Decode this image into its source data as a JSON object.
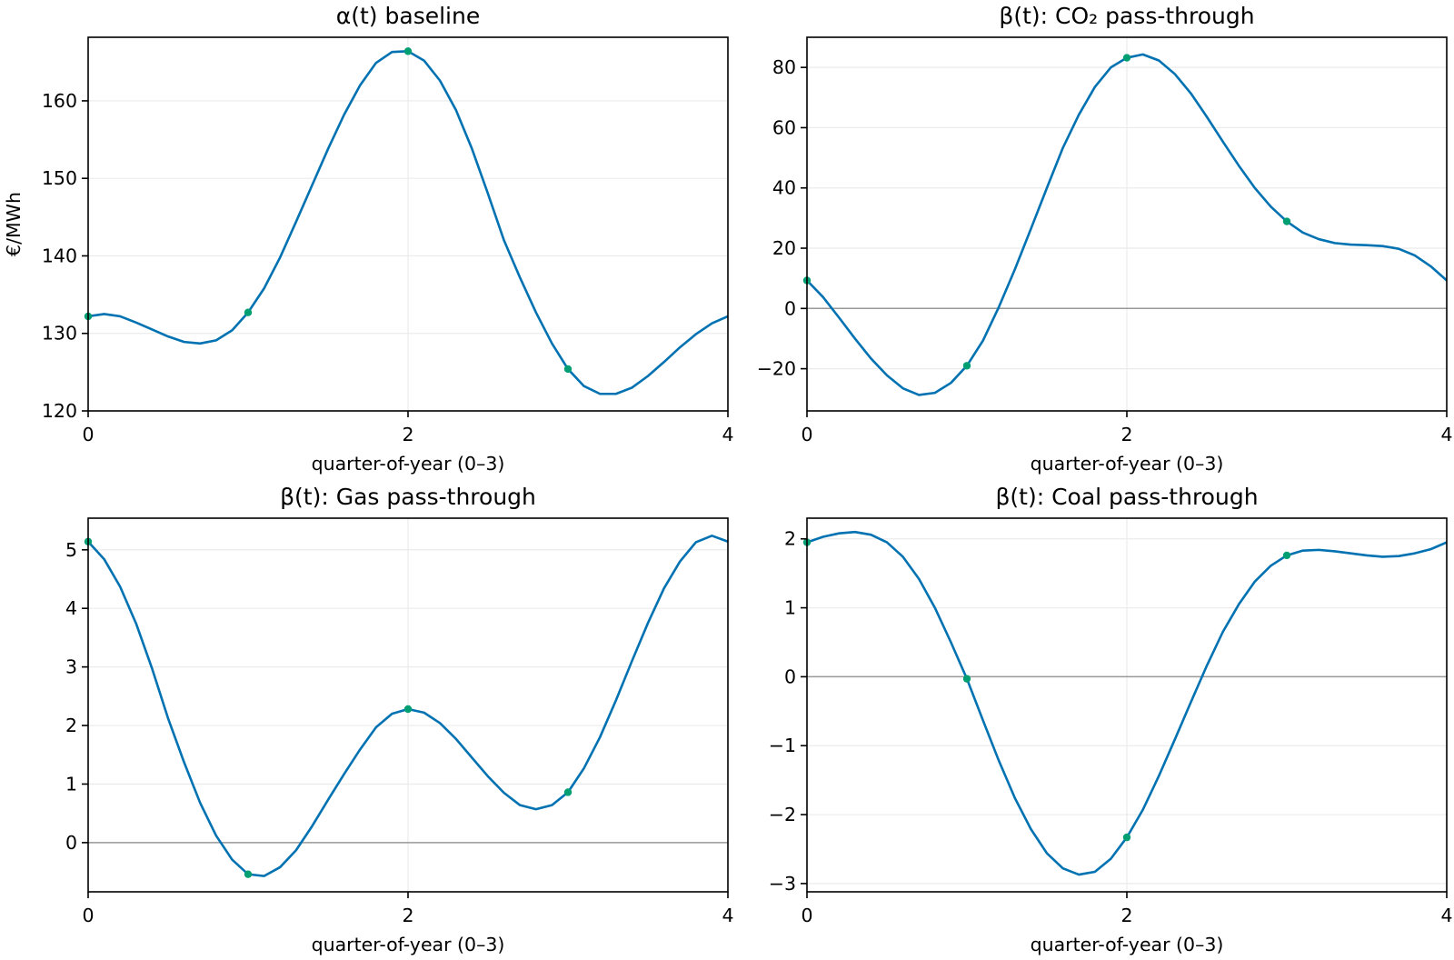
{
  "chart_data": [
    {
      "type": "line",
      "title": "α(t) baseline",
      "xlabel": "quarter-of-year (0–3)",
      "ylabel": "€/MWh",
      "xlim": [
        0,
        4
      ],
      "ylim": [
        120,
        168.2
      ],
      "xticks": [
        0,
        2,
        4
      ],
      "yticks": [
        120,
        130,
        140,
        150,
        160
      ],
      "ytick_labels": [
        "120",
        "130",
        "140",
        "150",
        "160"
      ],
      "grid": true,
      "zero_line": false,
      "series": [
        {
          "x": [
            0,
            0.1,
            0.2,
            0.3,
            0.4,
            0.5,
            0.6,
            0.7,
            0.8,
            0.9,
            1.0,
            1.1,
            1.2,
            1.3,
            1.4,
            1.5,
            1.6,
            1.7,
            1.8,
            1.9,
            2.0,
            2.1,
            2.2,
            2.3,
            2.4,
            2.5,
            2.6,
            2.7,
            2.8,
            2.9,
            3.0,
            3.1,
            3.2,
            3.3,
            3.4,
            3.5,
            3.6,
            3.7,
            3.8,
            3.9,
            4.0
          ],
          "y": [
            132.2,
            132.5,
            132.2,
            131.4,
            130.5,
            129.6,
            128.9,
            128.7,
            129.1,
            130.4,
            132.7,
            135.8,
            139.8,
            144.4,
            149.1,
            153.8,
            158.2,
            162.0,
            164.9,
            166.3,
            166.4,
            165.2,
            162.6,
            158.8,
            153.8,
            148.0,
            142.0,
            137.2,
            132.7,
            128.7,
            125.4,
            123.2,
            122.2,
            122.2,
            123.0,
            124.5,
            126.3,
            128.2,
            129.9,
            131.3,
            132.2
          ]
        }
      ],
      "markers": {
        "x": [
          0,
          1,
          2,
          3
        ],
        "y": [
          132.2,
          132.7,
          166.4,
          125.4
        ]
      }
    },
    {
      "type": "line",
      "title": "β(t): CO₂ pass-through",
      "xlabel": "quarter-of-year (0–3)",
      "xlim": [
        0,
        4
      ],
      "ylim": [
        -34,
        90
      ],
      "xticks": [
        0,
        2,
        4
      ],
      "yticks": [
        -20,
        0,
        20,
        40,
        60,
        80
      ],
      "ytick_labels": [
        "−20",
        "0",
        "20",
        "40",
        "60",
        "80"
      ],
      "grid": true,
      "zero_line": true,
      "series": [
        {
          "x": [
            0,
            0.1,
            0.2,
            0.3,
            0.4,
            0.5,
            0.6,
            0.7,
            0.8,
            0.9,
            1.0,
            1.1,
            1.2,
            1.3,
            1.4,
            1.5,
            1.6,
            1.7,
            1.8,
            1.9,
            2.0,
            2.1,
            2.2,
            2.3,
            2.4,
            2.5,
            2.6,
            2.7,
            2.8,
            2.9,
            3.0,
            3.1,
            3.2,
            3.3,
            3.4,
            3.5,
            3.6,
            3.7,
            3.8,
            3.9,
            4.0
          ],
          "y": [
            9.3,
            3.8,
            -3.0,
            -10.0,
            -16.6,
            -22.2,
            -26.5,
            -28.7,
            -28.0,
            -24.7,
            -19.0,
            -10.7,
            0.5,
            13.0,
            26.4,
            40.0,
            53.3,
            64.3,
            73.5,
            80.0,
            83.2,
            84.3,
            82.3,
            77.8,
            71.4,
            63.6,
            55.4,
            47.4,
            40.0,
            33.8,
            28.9,
            25.2,
            23.0,
            21.7,
            21.2,
            21.0,
            20.7,
            19.8,
            17.6,
            14.0,
            9.3
          ]
        }
      ],
      "markers": {
        "x": [
          0,
          1,
          2,
          3
        ],
        "y": [
          9.3,
          -19.0,
          83.2,
          28.9
        ]
      }
    },
    {
      "type": "line",
      "title": "β(t): Gas pass-through",
      "xlabel": "quarter-of-year (0–3)",
      "xlim": [
        0,
        4
      ],
      "ylim": [
        -0.84,
        5.54
      ],
      "xticks": [
        0,
        2,
        4
      ],
      "yticks": [
        0,
        1,
        2,
        3,
        4,
        5
      ],
      "ytick_labels": [
        "0",
        "1",
        "2",
        "3",
        "4",
        "5"
      ],
      "grid": true,
      "zero_line": true,
      "series": [
        {
          "x": [
            0,
            0.1,
            0.2,
            0.3,
            0.4,
            0.5,
            0.6,
            0.7,
            0.8,
            0.9,
            1.0,
            1.1,
            1.2,
            1.3,
            1.4,
            1.5,
            1.6,
            1.7,
            1.8,
            1.9,
            2.0,
            2.1,
            2.2,
            2.3,
            2.4,
            2.5,
            2.6,
            2.7,
            2.8,
            2.9,
            3.0,
            3.1,
            3.2,
            3.3,
            3.4,
            3.5,
            3.6,
            3.7,
            3.8,
            3.9,
            4.0
          ],
          "y": [
            5.14,
            4.84,
            4.37,
            3.74,
            2.97,
            2.12,
            1.37,
            0.68,
            0.12,
            -0.29,
            -0.54,
            -0.57,
            -0.42,
            -0.13,
            0.28,
            0.73,
            1.17,
            1.59,
            1.97,
            2.2,
            2.28,
            2.22,
            2.04,
            1.77,
            1.45,
            1.13,
            0.85,
            0.64,
            0.57,
            0.64,
            0.86,
            1.27,
            1.8,
            2.43,
            3.1,
            3.75,
            4.34,
            4.8,
            5.13,
            5.24,
            5.14
          ]
        }
      ],
      "markers": {
        "x": [
          0,
          1,
          2,
          3
        ],
        "y": [
          5.14,
          -0.54,
          2.28,
          0.86
        ]
      }
    },
    {
      "type": "line",
      "title": "β(t): Coal pass-through",
      "xlabel": "quarter-of-year (0–3)",
      "xlim": [
        0,
        4
      ],
      "ylim": [
        -3.12,
        2.3
      ],
      "xticks": [
        0,
        2,
        4
      ],
      "yticks": [
        -3,
        -2,
        -1,
        0,
        1,
        2
      ],
      "ytick_labels": [
        "−3",
        "−2",
        "−1",
        "0",
        "1",
        "2"
      ],
      "grid": true,
      "zero_line": true,
      "series": [
        {
          "x": [
            0,
            0.1,
            0.2,
            0.3,
            0.4,
            0.5,
            0.6,
            0.7,
            0.8,
            0.9,
            1.0,
            1.1,
            1.2,
            1.3,
            1.4,
            1.5,
            1.6,
            1.7,
            1.8,
            1.9,
            2.0,
            2.1,
            2.2,
            2.3,
            2.4,
            2.5,
            2.6,
            2.7,
            2.8,
            2.9,
            3.0,
            3.1,
            3.2,
            3.3,
            3.4,
            3.5,
            3.6,
            3.7,
            3.8,
            3.9,
            4.0
          ],
          "y": [
            1.95,
            2.03,
            2.08,
            2.1,
            2.06,
            1.95,
            1.74,
            1.42,
            1.0,
            0.5,
            -0.03,
            -0.63,
            -1.22,
            -1.76,
            -2.21,
            -2.56,
            -2.78,
            -2.87,
            -2.83,
            -2.64,
            -2.33,
            -1.93,
            -1.44,
            -0.91,
            -0.37,
            0.16,
            0.65,
            1.05,
            1.38,
            1.61,
            1.76,
            1.83,
            1.84,
            1.82,
            1.79,
            1.76,
            1.74,
            1.75,
            1.79,
            1.85,
            1.95
          ]
        }
      ],
      "markers": {
        "x": [
          0,
          1,
          2,
          3
        ],
        "y": [
          1.95,
          -0.03,
          -2.33,
          1.76
        ]
      }
    }
  ],
  "colors": {
    "line": "#0072b2",
    "marker": "#009e73",
    "grid": "#ebebeb",
    "zero_line": "#999999",
    "axis": "#000000"
  }
}
